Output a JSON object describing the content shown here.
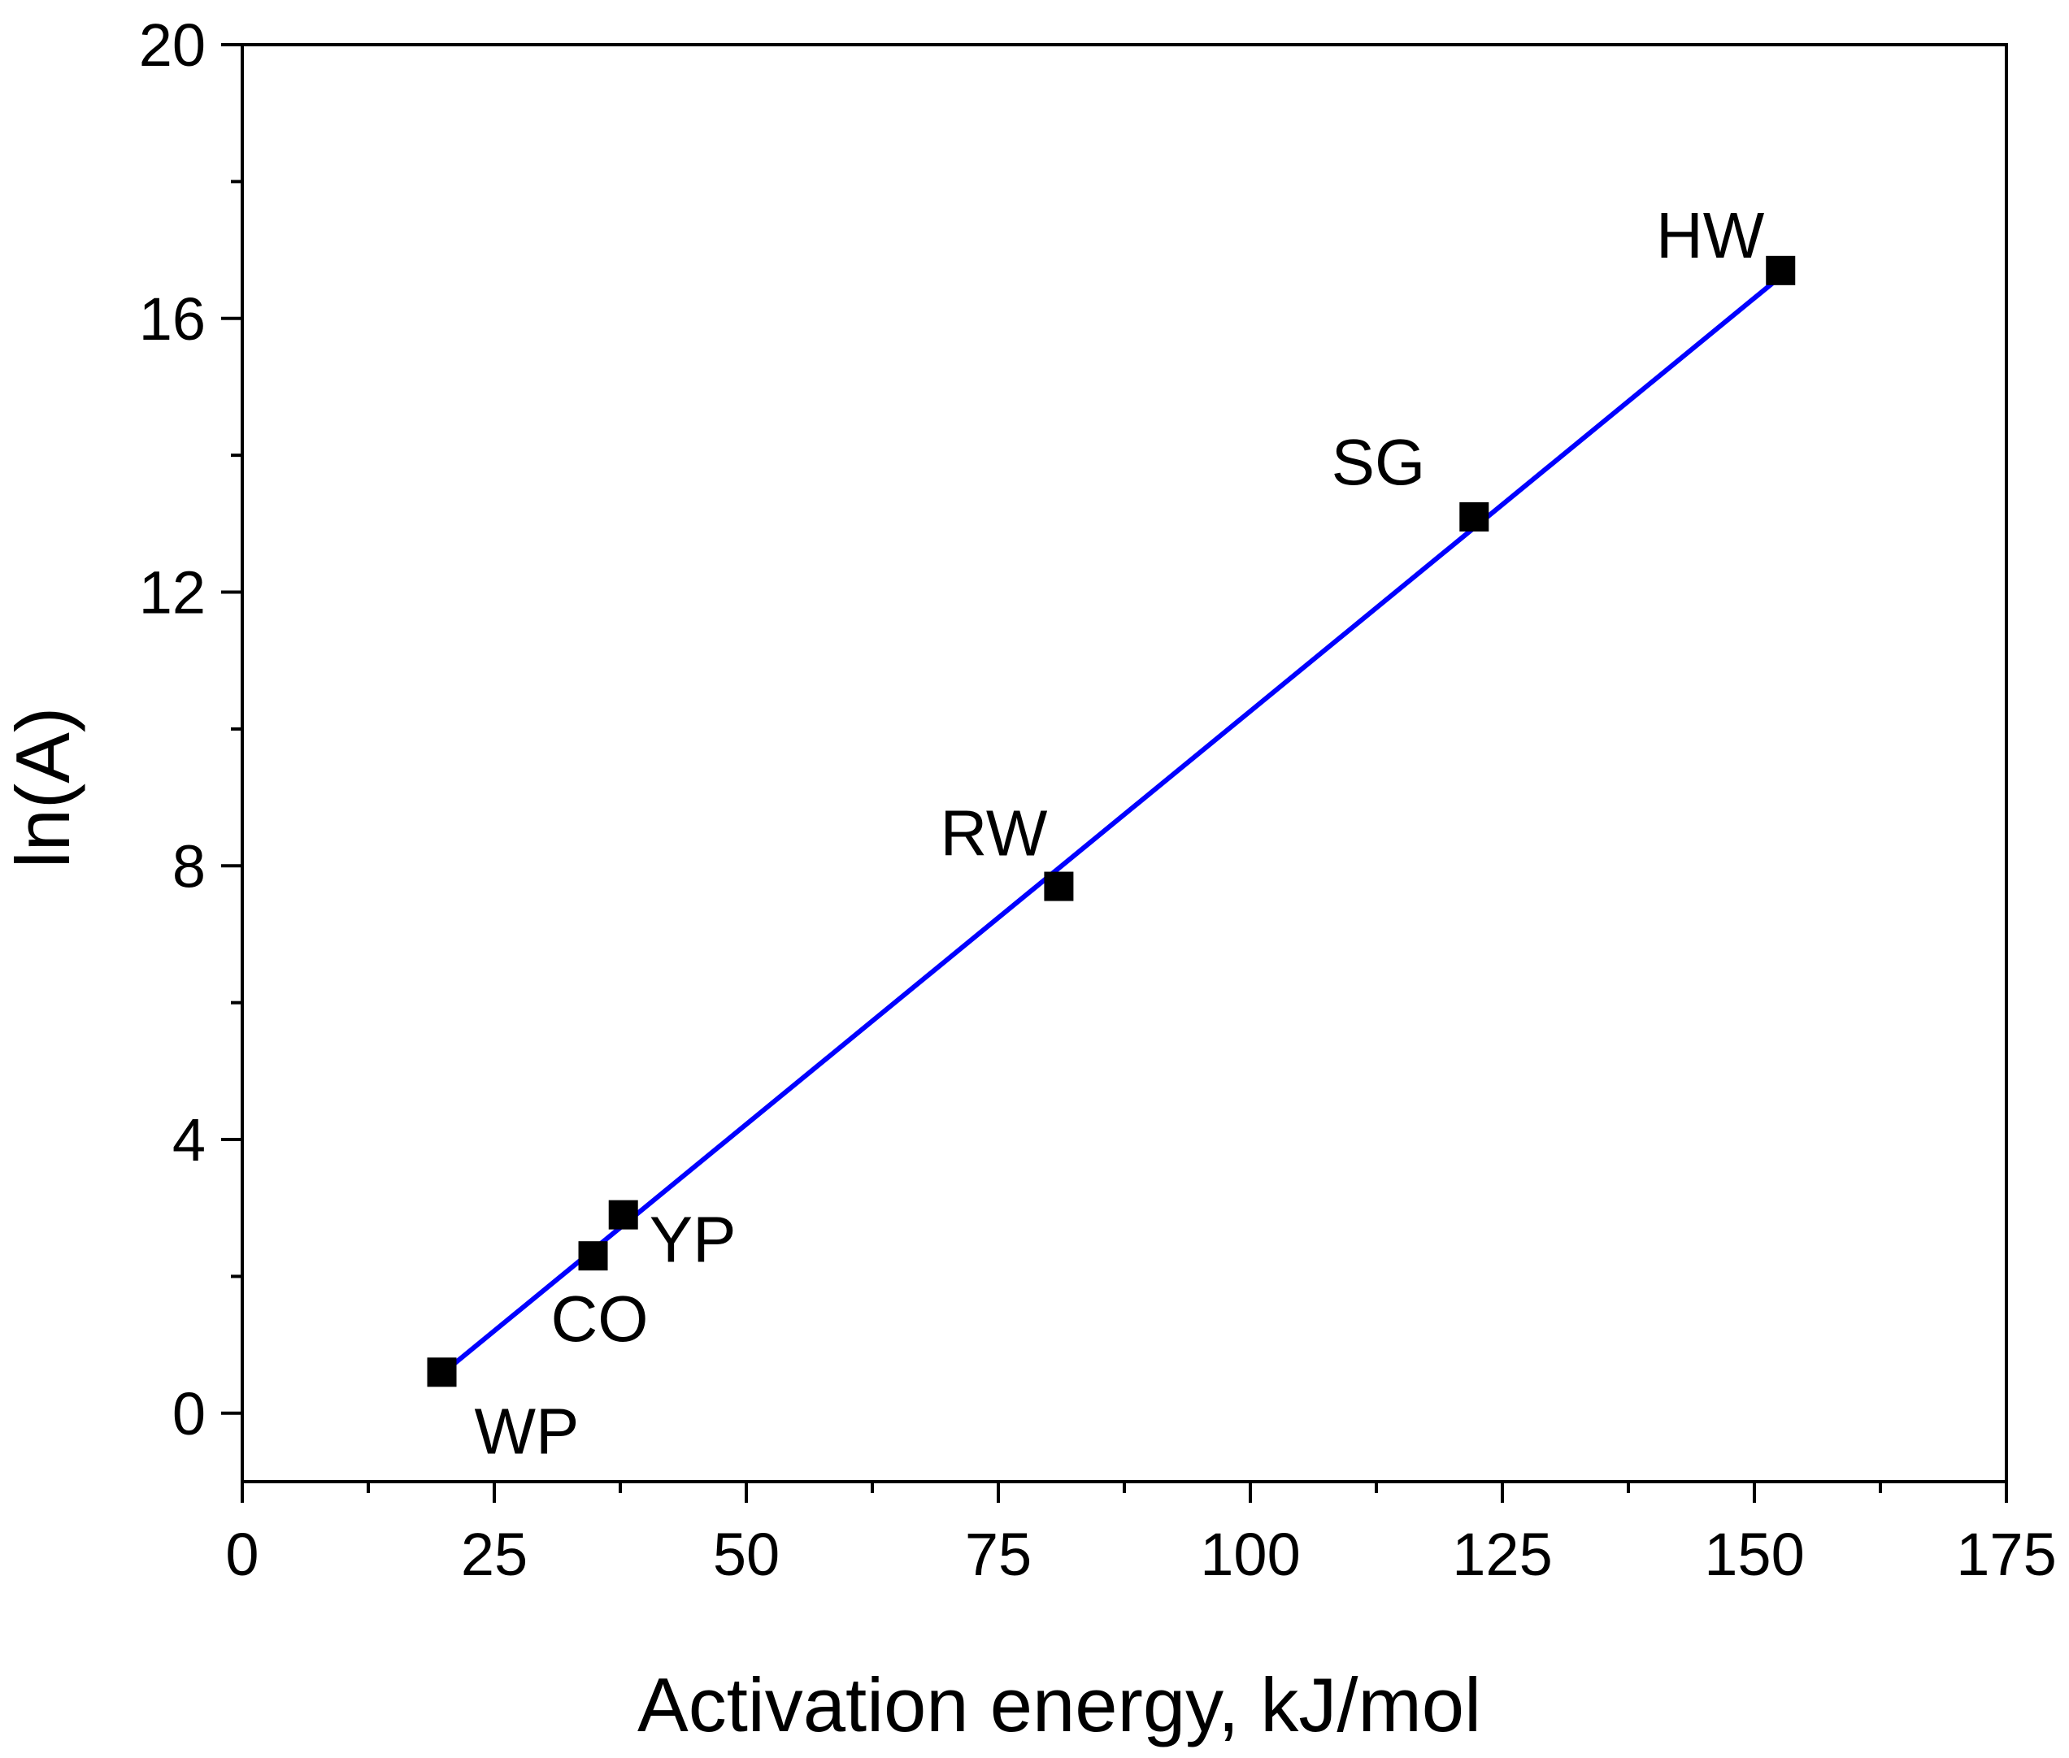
{
  "chart_data": {
    "type": "scatter",
    "title": "",
    "xlabel": "Activation energy, kJ/mol",
    "ylabel": "ln(A)",
    "xlim": [
      0,
      175
    ],
    "ylim": [
      -1,
      20
    ],
    "x_ticks": [
      "0",
      "25",
      "50",
      "75",
      "100",
      "125",
      "150",
      "175"
    ],
    "y_ticks": [
      "0",
      "4",
      "8",
      "12",
      "16",
      "20"
    ],
    "grid": false,
    "legend": "none",
    "points": [
      {
        "label": "WP",
        "x": 19.8,
        "y": 0.6
      },
      {
        "label": "CO",
        "x": 34.8,
        "y": 2.3
      },
      {
        "label": "YP",
        "x": 37.8,
        "y": 2.9
      },
      {
        "label": "RW",
        "x": 81.0,
        "y": 7.7
      },
      {
        "label": "SG",
        "x": 122.2,
        "y": 13.1
      },
      {
        "label": "HW",
        "x": 152.6,
        "y": 16.7
      }
    ],
    "fit_line": {
      "x": [
        20,
        152.5
      ],
      "y": [
        0.6,
        16.6
      ]
    },
    "colors": {
      "marker": "#000000",
      "fit_line": "#0000ff",
      "axes": "#000000"
    }
  }
}
